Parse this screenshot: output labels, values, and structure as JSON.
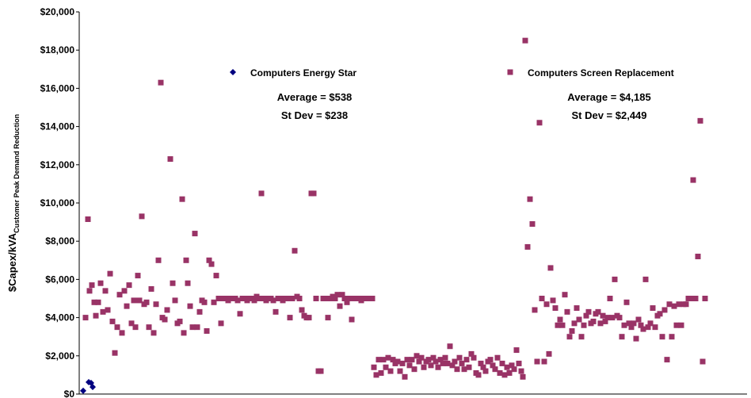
{
  "chart_data": {
    "type": "scatter",
    "y_label": "$Capex/kVA",
    "y_label_sub": "Customer Peak Demand Reduction",
    "xlim": [
      0,
      843
    ],
    "ylim": [
      0,
      20000
    ],
    "yticks": [
      {
        "value": 0,
        "label": "$0"
      },
      {
        "value": 2000,
        "label": "$2,000"
      },
      {
        "value": 4000,
        "label": "$4,000"
      },
      {
        "value": 6000,
        "label": "$6,000"
      },
      {
        "value": 8000,
        "label": "$8,000"
      },
      {
        "value": 10000,
        "label": "$10,000"
      },
      {
        "value": 12000,
        "label": "$12,000"
      },
      {
        "value": 14000,
        "label": "$14,000"
      },
      {
        "value": 16000,
        "label": "$16,000"
      },
      {
        "value": 18000,
        "label": "$18,000"
      },
      {
        "value": 20000,
        "label": "$20,000"
      }
    ],
    "annotations": [
      [
        "Average = $538",
        "St Dev = $238"
      ],
      [
        "Average = $4,185",
        "St Dev = $2,449"
      ]
    ],
    "series": [
      {
        "name": "Computers Energy Star",
        "color": "#000080",
        "marker": "diamond",
        "x": [
          5,
          12,
          15,
          17
        ],
        "values": [
          170,
          620,
          580,
          370
        ]
      },
      {
        "name": "Computers Screen Replacement",
        "color": "#993366",
        "marker": "square",
        "x": [
          8,
          11,
          13,
          16,
          19,
          21,
          24,
          27,
          30,
          33,
          36,
          39,
          42,
          45,
          48,
          51,
          54,
          57,
          60,
          63,
          66,
          69,
          71,
          74,
          76,
          79,
          82,
          85,
          88,
          91,
          94,
          97,
          100,
          103,
          105,
          108,
          111,
          115,
          118,
          121,
          124,
          127,
          130,
          132,
          135,
          137,
          140,
          143,
          146,
          149,
          152,
          155,
          158,
          161,
          164,
          167,
          170,
          173,
          176,
          179,
          182,
          185,
          188,
          191,
          194,
          197,
          200,
          203,
          206,
          209,
          212,
          215,
          218,
          221,
          224,
          227,
          230,
          233,
          236,
          239,
          242,
          245,
          248,
          251,
          254,
          257,
          260,
          263,
          266,
          269,
          272,
          275,
          278,
          281,
          284,
          287,
          290,
          293,
          296,
          299,
          302,
          305,
          308,
          311,
          314,
          317,
          320,
          323,
          326,
          329,
          332,
          335,
          338,
          341,
          344,
          347,
          350,
          353,
          356,
          359,
          362,
          366,
          370,
          372,
          375,
          378,
          381,
          384,
          387,
          390,
          393,
          396,
          399,
          402,
          405,
          408,
          411,
          414,
          417,
          420,
          423,
          426,
          429,
          432,
          435,
          438,
          441,
          444,
          447,
          450,
          453,
          456,
          459,
          462,
          465,
          468,
          471,
          474,
          477,
          480,
          483,
          486,
          489,
          492,
          495,
          498,
          501,
          504,
          507,
          510,
          513,
          516,
          519,
          522,
          525,
          528,
          531,
          534,
          537,
          540,
          543,
          546,
          549,
          552,
          555,
          558,
          560,
          563,
          566,
          569,
          572,
          575,
          578,
          581,
          584,
          587,
          590,
          593,
          595,
          598,
          601,
          604,
          607,
          610,
          613,
          616,
          619,
          622,
          625,
          628,
          631,
          634,
          637,
          640,
          643,
          646,
          649,
          652,
          655,
          658,
          661,
          664,
          667,
          670,
          673,
          676,
          679,
          682,
          685,
          688,
          691,
          694,
          697,
          700,
          703,
          706,
          709,
          712,
          715,
          718,
          721,
          724,
          727,
          730,
          733,
          736,
          739,
          742,
          745,
          748,
          751,
          754,
          757,
          760,
          763,
          766,
          769,
          772,
          775,
          778,
          781,
          784,
          787,
          790
        ],
        "values": [
          4000,
          9150,
          5400,
          5700,
          4800,
          4100,
          4800,
          5800,
          4300,
          5400,
          4400,
          6300,
          3800,
          2150,
          3500,
          5200,
          3200,
          5400,
          4600,
          5700,
          3700,
          4900,
          3500,
          6200,
          4900,
          9300,
          4700,
          4800,
          3500,
          5500,
          3200,
          4700,
          7000,
          16300,
          4000,
          3900,
          4400,
          12300,
          5800,
          4900,
          3700,
          3800,
          10200,
          3200,
          7000,
          5800,
          4600,
          3500,
          8400,
          3500,
          4300,
          4900,
          4800,
          3300,
          7000,
          6800,
          4800,
          6200,
          5000,
          3700,
          5000,
          5000,
          4900,
          5000,
          5000,
          5000,
          4900,
          4200,
          5000,
          5000,
          4900,
          5000,
          5000,
          4900,
          5100,
          5000,
          10500,
          5000,
          4900,
          5000,
          5000,
          4900,
          4300,
          5000,
          5000,
          4900,
          5000,
          5000,
          4000,
          5000,
          7500,
          5100,
          5000,
          4400,
          4100,
          4000,
          4000,
          10500,
          10500,
          5000,
          1200,
          1200,
          5000,
          5000,
          4000,
          5000,
          5100,
          5000,
          5200,
          4600,
          5200,
          5000,
          4800,
          5000,
          3900,
          5000,
          5000,
          5000,
          4900,
          5000,
          5000,
          5000,
          5000,
          1400,
          1000,
          1800,
          1100,
          1800,
          1400,
          1900,
          1200,
          1800,
          1600,
          1700,
          1200,
          1600,
          900,
          1800,
          1500,
          1800,
          1300,
          2000,
          1700,
          1900,
          1400,
          1700,
          1800,
          1500,
          1900,
          1700,
          1400,
          1800,
          1600,
          1900,
          1600,
          2500,
          1500,
          1700,
          1300,
          1900,
          1600,
          1300,
          1800,
          1400,
          2100,
          1900,
          1100,
          1000,
          1600,
          1400,
          1200,
          1700,
          1800,
          1500,
          1300,
          1900,
          1100,
          1600,
          1000,
          1400,
          1100,
          1500,
          1300,
          2300,
          1600,
          1200,
          900,
          18500,
          7700,
          10200,
          8900,
          4400,
          1700,
          14200,
          5000,
          1700,
          4700,
          2100,
          6600,
          4900,
          4500,
          3600,
          3900,
          3600,
          5200,
          4300,
          3000,
          3300,
          3700,
          4500,
          3900,
          3000,
          3600,
          4100,
          4300,
          3700,
          3800,
          4200,
          4300,
          3700,
          4100,
          3800,
          4000,
          5000,
          4000,
          6000,
          4100,
          4000,
          3000,
          3600,
          4800,
          3700,
          3500,
          3700,
          2900,
          3900,
          3600,
          3400,
          6000,
          3500,
          3700,
          4500,
          3500,
          4100,
          4200,
          3000,
          4400,
          1800,
          4700,
          3000,
          4600,
          3600,
          4700,
          3600,
          4700,
          4700,
          5000,
          5000,
          11200,
          5000,
          7200,
          14300,
          1700,
          5000
        ]
      }
    ]
  }
}
